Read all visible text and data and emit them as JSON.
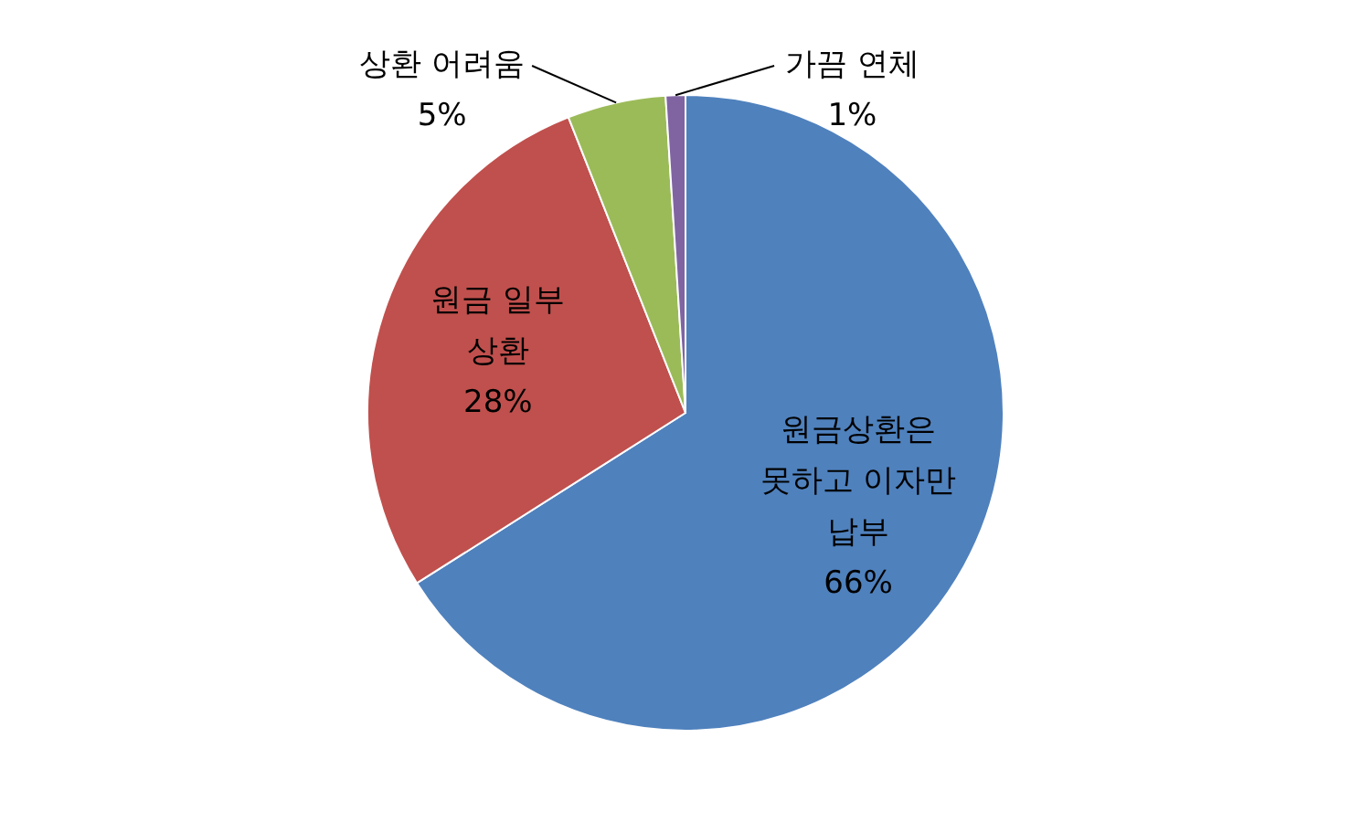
{
  "chart_data": {
    "type": "pie",
    "categories": [
      "원금상환은 못하고 이자만 납부",
      "원금 일부 상환",
      "상환 어려움",
      "가끔 연체"
    ],
    "values": [
      66,
      28,
      5,
      1
    ],
    "colors": [
      "#4f81bd",
      "#c0504d",
      "#9bbb59",
      "#8064a2"
    ],
    "value_labels": [
      "66%",
      "28%",
      "5%",
      "1%"
    ]
  }
}
